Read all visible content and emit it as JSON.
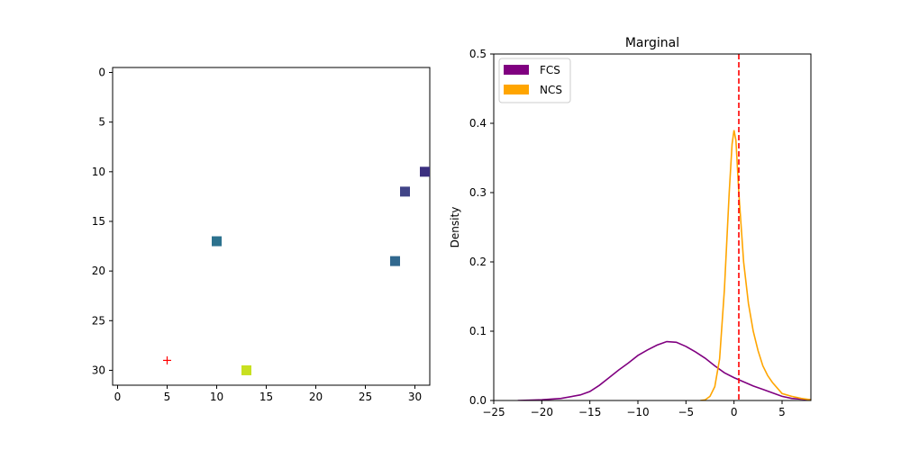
{
  "chart_data": [
    {
      "type": "scatter",
      "title": "",
      "xlabel": "",
      "ylabel": "",
      "xlim": [
        -0.5,
        31.5
      ],
      "ylim": [
        31.5,
        -0.5
      ],
      "y_inverted": true,
      "grid": false,
      "x_ticks": [
        0,
        5,
        10,
        15,
        20,
        25,
        30
      ],
      "y_ticks": [
        0,
        5,
        10,
        15,
        20,
        25,
        30
      ],
      "series": [
        {
          "marker": "square",
          "points": [
            {
              "x": 31,
              "y": 10,
              "color": "#3b2f7f"
            },
            {
              "x": 29,
              "y": 12,
              "color": "#414487"
            },
            {
              "x": 10,
              "y": 17,
              "color": "#2c728e"
            },
            {
              "x": 28,
              "y": 19,
              "color": "#31688e"
            },
            {
              "x": 13,
              "y": 30,
              "color": "#c8e020"
            }
          ]
        },
        {
          "marker": "plus",
          "color": "#ff0000",
          "points": [
            {
              "x": 5,
              "y": 29
            }
          ]
        }
      ]
    },
    {
      "type": "line",
      "title": "Marginal",
      "xlabel": "",
      "ylabel": "Density",
      "xlim": [
        -25,
        8
      ],
      "ylim": [
        0,
        0.5
      ],
      "grid": false,
      "legend_position": "top-left",
      "x_ticks": [
        -25,
        -20,
        -15,
        -10,
        -5,
        0,
        5
      ],
      "y_ticks": [
        0.0,
        0.1,
        0.2,
        0.3,
        0.4,
        0.5
      ],
      "vline": {
        "x": 0.5,
        "color": "#ff0000",
        "style": "dashed"
      },
      "series": [
        {
          "name": "FCS",
          "color": "#800080",
          "x": [
            -22.5,
            -20,
            -18,
            -16,
            -15,
            -14,
            -13,
            -12,
            -11,
            -10,
            -9,
            -8,
            -7,
            -6,
            -5,
            -4,
            -3,
            -2,
            -1,
            0,
            1,
            2,
            3,
            4,
            5,
            6,
            7,
            8
          ],
          "y": [
            0.0,
            0.001,
            0.003,
            0.008,
            0.013,
            0.022,
            0.033,
            0.044,
            0.054,
            0.065,
            0.073,
            0.08,
            0.085,
            0.084,
            0.078,
            0.07,
            0.061,
            0.05,
            0.04,
            0.033,
            0.027,
            0.021,
            0.016,
            0.011,
            0.006,
            0.003,
            0.002,
            0.001
          ]
        },
        {
          "name": "NCS",
          "color": "#ffa500",
          "x": [
            -3.5,
            -3,
            -2.5,
            -2,
            -1.5,
            -1,
            -0.5,
            -0.2,
            0,
            0.2,
            0.5,
            1,
            1.5,
            2,
            2.5,
            3,
            3.5,
            4,
            5,
            6,
            7,
            8
          ],
          "y": [
            0.0,
            0.001,
            0.006,
            0.02,
            0.06,
            0.16,
            0.3,
            0.37,
            0.39,
            0.375,
            0.3,
            0.2,
            0.14,
            0.1,
            0.072,
            0.05,
            0.036,
            0.026,
            0.01,
            0.006,
            0.003,
            0.001
          ]
        }
      ]
    }
  ]
}
